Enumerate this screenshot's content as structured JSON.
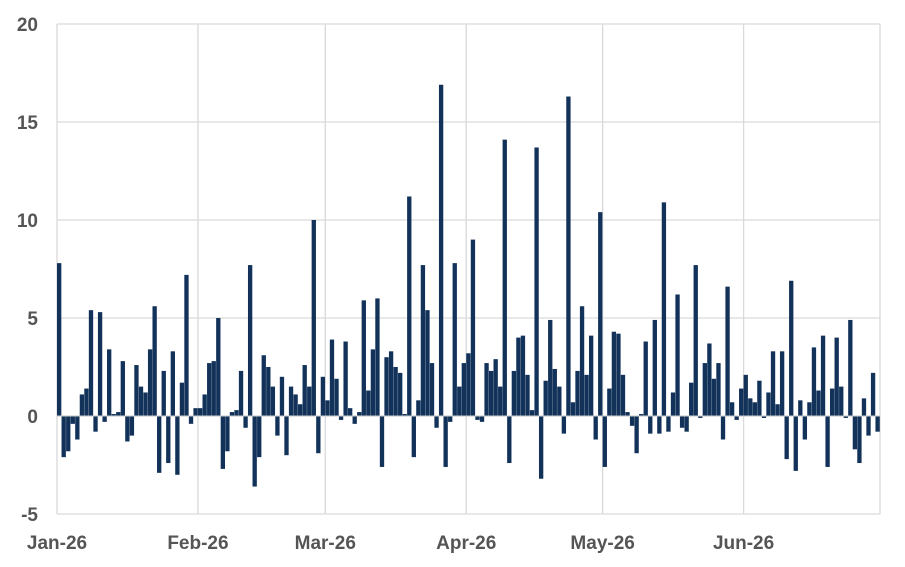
{
  "chart_data": {
    "type": "bar",
    "title": "",
    "xlabel": "",
    "ylabel": "",
    "ylim": [
      -5,
      20
    ],
    "y_ticks": [
      "-5",
      "0",
      "5",
      "10",
      "15",
      "20"
    ],
    "x_tick_labels": [
      "Jan-26",
      "Feb-26",
      "Mar-26",
      "Apr-26",
      "May-26",
      "Jun-26"
    ],
    "x_tick_dates": [
      "2026-01-01",
      "2026-02-01",
      "2026-03-01",
      "2026-04-01",
      "2026-05-01",
      "2026-06-01"
    ],
    "x_range": [
      "2026-01-01",
      "2026-06-30"
    ],
    "grid": true,
    "legend": "none",
    "bar_color": "#12325a",
    "series": [
      {
        "x": [
          "2026-01-01",
          "2026-01-02",
          "2026-01-03",
          "2026-01-04",
          "2026-01-05",
          "2026-01-06",
          "2026-01-07",
          "2026-01-08",
          "2026-01-09",
          "2026-01-10",
          "2026-01-11",
          "2026-01-12",
          "2026-01-13",
          "2026-01-14",
          "2026-01-15",
          "2026-01-16",
          "2026-01-17",
          "2026-01-18",
          "2026-01-19",
          "2026-01-20",
          "2026-01-21",
          "2026-01-22",
          "2026-01-23",
          "2026-01-24",
          "2026-01-25",
          "2026-01-26",
          "2026-01-27",
          "2026-01-28",
          "2026-01-29",
          "2026-01-30",
          "2026-01-31",
          "2026-02-01",
          "2026-02-02",
          "2026-02-03",
          "2026-02-04",
          "2026-02-05",
          "2026-02-06",
          "2026-02-07",
          "2026-02-08",
          "2026-02-09",
          "2026-02-10",
          "2026-02-11",
          "2026-02-12",
          "2026-02-13",
          "2026-02-14",
          "2026-02-15",
          "2026-02-16",
          "2026-02-17",
          "2026-02-18",
          "2026-02-19",
          "2026-02-20",
          "2026-02-21",
          "2026-02-22",
          "2026-02-23",
          "2026-02-24",
          "2026-02-25",
          "2026-02-26",
          "2026-02-27",
          "2026-02-28",
          "2026-03-01",
          "2026-03-02",
          "2026-03-03",
          "2026-03-04",
          "2026-03-05",
          "2026-03-06",
          "2026-03-07",
          "2026-03-08",
          "2026-03-09",
          "2026-03-10",
          "2026-03-11",
          "2026-03-12",
          "2026-03-13",
          "2026-03-14",
          "2026-03-15",
          "2026-03-16",
          "2026-03-17",
          "2026-03-18",
          "2026-03-19",
          "2026-03-20",
          "2026-03-21",
          "2026-03-22",
          "2026-03-23",
          "2026-03-24",
          "2026-03-25",
          "2026-03-26",
          "2026-03-27",
          "2026-03-28",
          "2026-03-29",
          "2026-03-30",
          "2026-03-31",
          "2026-04-01",
          "2026-04-02",
          "2026-04-03",
          "2026-04-04",
          "2026-04-05",
          "2026-04-06",
          "2026-04-07",
          "2026-04-08",
          "2026-04-09",
          "2026-04-10",
          "2026-04-11",
          "2026-04-12",
          "2026-04-13",
          "2026-04-14",
          "2026-04-15",
          "2026-04-16",
          "2026-04-17",
          "2026-04-18",
          "2026-04-19",
          "2026-04-20",
          "2026-04-21",
          "2026-04-22",
          "2026-04-23",
          "2026-04-24",
          "2026-04-25",
          "2026-04-26",
          "2026-04-27",
          "2026-04-28",
          "2026-04-29",
          "2026-04-30",
          "2026-05-01",
          "2026-05-02",
          "2026-05-03",
          "2026-05-04",
          "2026-05-05",
          "2026-05-06",
          "2026-05-07",
          "2026-05-08",
          "2026-05-09",
          "2026-05-10",
          "2026-05-11",
          "2026-05-12",
          "2026-05-13",
          "2026-05-14",
          "2026-05-15",
          "2026-05-16",
          "2026-05-17",
          "2026-05-18",
          "2026-05-19",
          "2026-05-20",
          "2026-05-21",
          "2026-05-22",
          "2026-05-23",
          "2026-05-24",
          "2026-05-25",
          "2026-05-26",
          "2026-05-27",
          "2026-05-28",
          "2026-05-29",
          "2026-05-30",
          "2026-05-31",
          "2026-06-01",
          "2026-06-02",
          "2026-06-03",
          "2026-06-04",
          "2026-06-05",
          "2026-06-06",
          "2026-06-07",
          "2026-06-08",
          "2026-06-09",
          "2026-06-10",
          "2026-06-11",
          "2026-06-12",
          "2026-06-13",
          "2026-06-14",
          "2026-06-15",
          "2026-06-16",
          "2026-06-17",
          "2026-06-18",
          "2026-06-19",
          "2026-06-20",
          "2026-06-21",
          "2026-06-22",
          "2026-06-23",
          "2026-06-24",
          "2026-06-25",
          "2026-06-26",
          "2026-06-27",
          "2026-06-28",
          "2026-06-29",
          "2026-06-30"
        ],
        "values": [
          7.8,
          -2.1,
          -1.8,
          -0.4,
          -1.2,
          1.1,
          1.4,
          5.4,
          -0.8,
          5.3,
          -0.3,
          3.4,
          0.1,
          0.2,
          2.8,
          -1.3,
          -1.0,
          2.6,
          1.5,
          1.2,
          3.4,
          5.6,
          -2.9,
          2.3,
          -2.4,
          3.3,
          -3.0,
          1.7,
          7.2,
          -0.4,
          0.4,
          0.4,
          1.1,
          2.7,
          2.8,
          5.0,
          -2.7,
          -1.8,
          0.2,
          0.3,
          2.3,
          -0.6,
          7.7,
          -3.6,
          -2.1,
          3.1,
          2.5,
          1.5,
          -1.0,
          2.0,
          -2.0,
          1.5,
          1.1,
          0.6,
          2.6,
          1.5,
          10.0,
          -1.9,
          2.0,
          0.8,
          3.9,
          1.9,
          -0.2,
          3.8,
          0.4,
          -0.4,
          0.2,
          5.9,
          1.3,
          3.4,
          6.0,
          -2.6,
          3.0,
          3.3,
          2.5,
          2.2,
          0.1,
          11.2,
          -2.1,
          0.8,
          7.7,
          5.4,
          2.7,
          -0.6,
          16.9,
          -2.6,
          -0.3,
          7.8,
          1.5,
          2.7,
          3.2,
          9.0,
          -0.2,
          -0.3,
          2.7,
          2.3,
          2.9,
          1.5,
          14.1,
          -2.4,
          2.3,
          4.0,
          4.1,
          2.1,
          0.3,
          13.7,
          -3.2,
          1.8,
          4.9,
          2.4,
          1.5,
          -0.9,
          16.3,
          0.7,
          2.3,
          5.6,
          2.1,
          4.1,
          -1.2,
          10.4,
          -2.6,
          1.4,
          4.3,
          4.2,
          2.1,
          0.2,
          -0.5,
          -1.9,
          0.1,
          3.8,
          -0.9,
          4.9,
          -0.9,
          10.9,
          -0.8,
          1.2,
          6.2,
          -0.6,
          -0.8,
          1.7,
          7.7,
          -0.1,
          2.7,
          3.7,
          1.9,
          2.7,
          -1.2,
          6.6,
          0.7,
          -0.2,
          1.4,
          2.1,
          0.9,
          0.7,
          1.8,
          -0.1,
          1.2,
          3.3,
          0.6,
          3.3,
          -2.2,
          6.9,
          -2.8,
          0.8,
          -1.2,
          0.7,
          3.5,
          1.3,
          4.1,
          -2.6,
          1.4,
          4.0,
          1.5,
          -0.1,
          4.9,
          -1.7,
          -2.4,
          0.9,
          -1.0,
          2.2,
          -0.8
        ]
      }
    ]
  }
}
